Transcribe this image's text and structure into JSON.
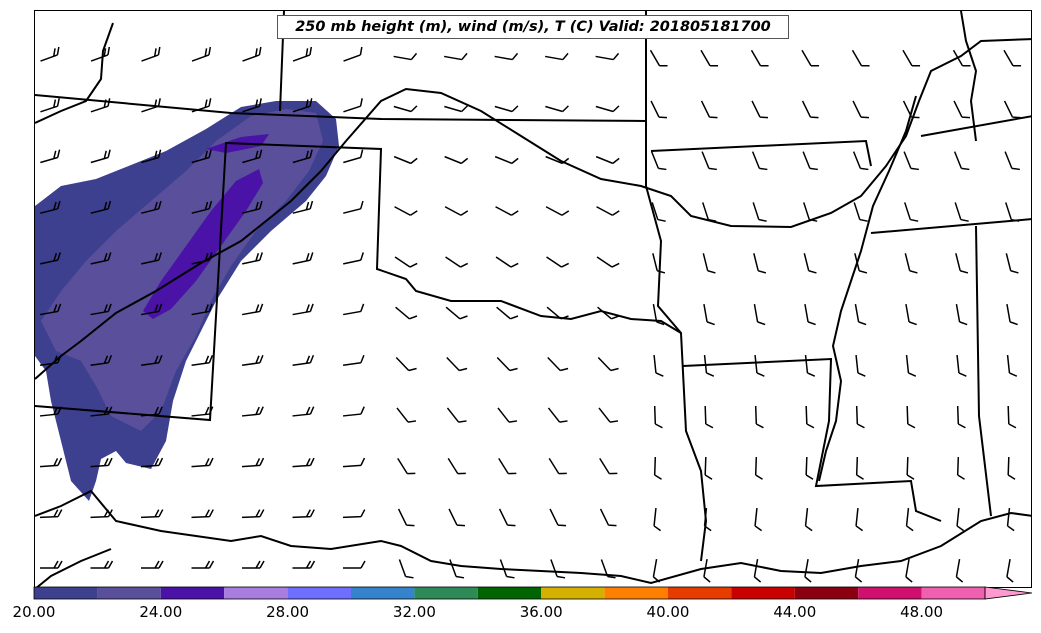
{
  "title": "250 mb height (m), wind (m/s), T (C) Valid: 201805181700",
  "colorbar": {
    "tick_labels": [
      "20.00",
      "24.00",
      "28.00",
      "32.00",
      "36.00",
      "40.00",
      "44.00",
      "48.00"
    ],
    "bins": [
      {
        "from": 20,
        "to": 22,
        "color": "#3d3f8f"
      },
      {
        "from": 22,
        "to": 24,
        "color": "#5a4f9a"
      },
      {
        "from": 24,
        "to": 26,
        "color": "#4a12a6"
      },
      {
        "from": 26,
        "to": 28,
        "color": "#a87de0"
      },
      {
        "from": 28,
        "to": 30,
        "color": "#6f6ffe"
      },
      {
        "from": 30,
        "to": 32,
        "color": "#3583cc"
      },
      {
        "from": 32,
        "to": 34,
        "color": "#2e8b57"
      },
      {
        "from": 34,
        "to": 36,
        "color": "#006400"
      },
      {
        "from": 36,
        "to": 38,
        "color": "#d4b000"
      },
      {
        "from": 38,
        "to": 40,
        "color": "#ff8000"
      },
      {
        "from": 40,
        "to": 42,
        "color": "#e63c00"
      },
      {
        "from": 42,
        "to": 44,
        "color": "#c80000"
      },
      {
        "from": 44,
        "to": 46,
        "color": "#8b0010"
      },
      {
        "from": 46,
        "to": 48,
        "color": "#d0106e"
      },
      {
        "from": 48,
        "to": 50,
        "color": "#f060b0"
      },
      {
        "from": 50,
        "to": 52,
        "color": "#ff9ad0"
      }
    ]
  },
  "map": {
    "background": "#ffffff",
    "boundary_color": "#000000",
    "shaded_field_colors": [
      "#3d3f8f",
      "#5a4f9a",
      "#4a12a6"
    ]
  }
}
